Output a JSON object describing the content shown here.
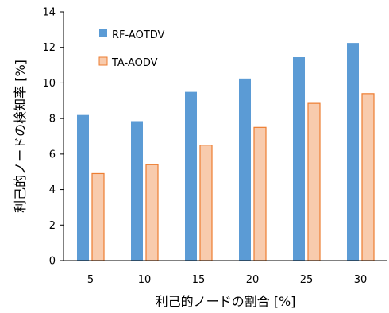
{
  "chart_data": {
    "type": "bar",
    "categories": [
      "5",
      "10",
      "15",
      "20",
      "25",
      "30"
    ],
    "series": [
      {
        "name": "RF-AOTDV",
        "values": [
          8.2,
          7.85,
          9.5,
          10.25,
          11.45,
          12.25
        ],
        "color": "#5B9BD5"
      },
      {
        "name": "TA-AODV",
        "values": [
          4.9,
          5.4,
          6.5,
          7.5,
          8.85,
          9.4
        ],
        "color": "#F8CBAD",
        "stroke": "#ED7D31"
      }
    ],
    "xlabel": "利己的ノードの割合 [%]",
    "ylabel": "利己的ノードの検知率 [%]",
    "ylim": [
      0,
      14
    ],
    "yticks": [
      0,
      2,
      4,
      6,
      8,
      10,
      12,
      14
    ],
    "grid": false,
    "legend_position": "top-left"
  }
}
